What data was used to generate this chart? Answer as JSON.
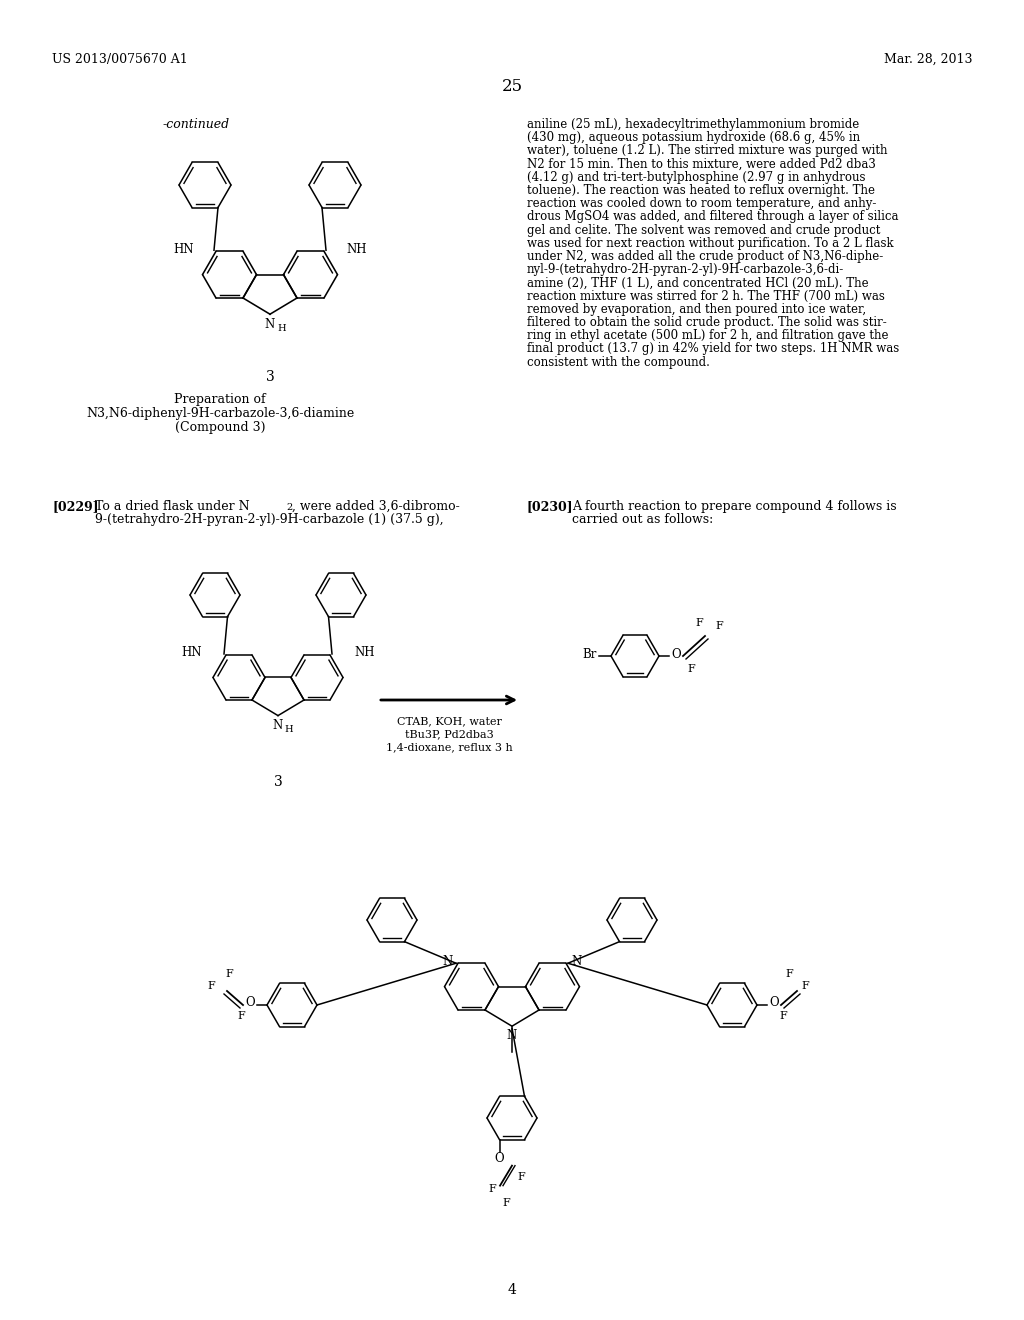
{
  "page_number": "25",
  "header_left": "US 2013/0075670 A1",
  "header_right": "Mar. 28, 2013",
  "background_color": "#ffffff",
  "text_color": "#000000",
  "figsize": [
    10.24,
    13.2
  ],
  "dpi": 100,
  "continued_label": "-continued",
  "compound3_caption": [
    "Preparation of",
    "N3,N6-diphenyl-9H-carbazole-3,6-diamine",
    "(Compound 3)"
  ],
  "para229_bold": "[0229]",
  "para229_body": "   To a dried flask under N2, were added 3,6-dibromo-\n9-(tetrahydro-2H-pyran-2-yl)-9H-carbazole (1) (37.5 g),",
  "para230_bold": "[0230]",
  "para230_body": "   A fourth reaction to prepare compound 4 follows is\ncarried out as follows:",
  "right_col": "aniline (25 mL), hexadecyltrimethylammonium bromide\n(430 mg), aqueous potassium hydroxide (68.6 g, 45% in\nwater), toluene (1.2 L). The stirred mixture was purged with\nN2 for 15 min. Then to this mixture, were added Pd2 dba3\n(4.12 g) and tri-tert-butylphosphine (2.97 g in anhydrous\ntoluene). The reaction was heated to reflux overnight. The\nreaction was cooled down to room temperature, and anhy-\ndrous MgSO4 was added, and filtered through a layer of silica\ngel and celite. The solvent was removed and crude product\nwas used for next reaction without purification. To a 2 L flask\nunder N2, was added all the crude product of N3,N6-diphe-\nnyl-9-(tetrahydro-2H-pyran-2-yl)-9H-carbazole-3,6-di-\namine (2), THF (1 L), and concentrated HCl (20 mL). The\nreaction mixture was stirred for 2 h. The THF (700 mL) was\nremoved by evaporation, and then poured into ice water,\nfiltered to obtain the solid crude product. The solid was stir-\nring in ethyl acetate (500 mL) for 2 h, and filtration gave the\nfinal product (13.7 g) in 42% yield for two steps. 1H NMR was\nconsistent with the compound.",
  "rxn_ctab": "CTAB, KOH, water",
  "rxn_tbu": "tBu3P, Pd2dba3",
  "rxn_dioxane": "1,4-dioxane, reflux 3 h",
  "label3": "3",
  "label4": "4"
}
